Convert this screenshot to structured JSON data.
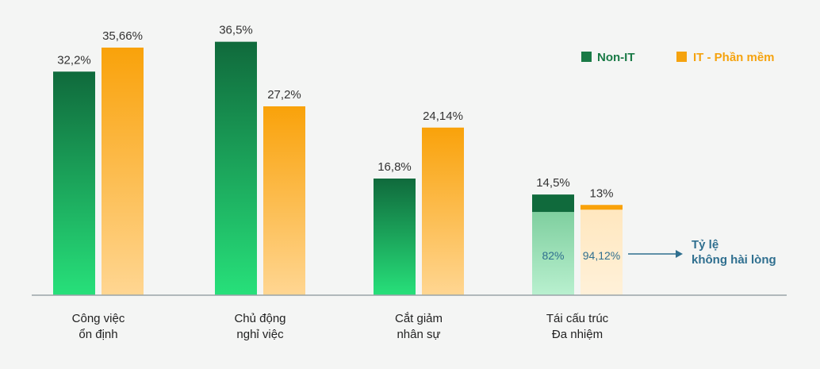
{
  "chart_data": {
    "type": "bar",
    "categories": [
      [
        "Công việc",
        "ổn định"
      ],
      [
        "Chủ động",
        "nghỉ việc"
      ],
      [
        "Cắt giảm",
        "nhân sự"
      ],
      [
        "Tái cấu trúc",
        "Đa nhiệm"
      ]
    ],
    "series": [
      {
        "name": "Non-IT",
        "values": [
          32.2,
          36.5,
          16.8,
          14.5
        ],
        "labels": [
          "32,2%",
          "36,5%",
          "16,8%",
          "14,5%"
        ],
        "color": "#1a7a46"
      },
      {
        "name": "IT - Phần mềm",
        "values": [
          35.66,
          27.2,
          24.14,
          13
        ],
        "labels": [
          "35,66%",
          "27,2%",
          "24,14%",
          "13%"
        ],
        "color": "#f5a30f"
      }
    ],
    "ylim": [
      0,
      40
    ],
    "legend_position": "top-right",
    "sub_annotation": {
      "category_index": 3,
      "sub_values": [
        82,
        94.12
      ],
      "sub_labels": [
        "82%",
        "94,12%"
      ],
      "label_lines": [
        "Tỷ lệ",
        "không hài lòng"
      ]
    }
  },
  "colors": {
    "non_it_top": "#106a3c",
    "non_it_bottom": "#27e07a",
    "it_top": "#f9a20a",
    "it_bottom": "#ffd692",
    "annotation": "#2f6f8f",
    "axis": "#9aa3a8"
  }
}
